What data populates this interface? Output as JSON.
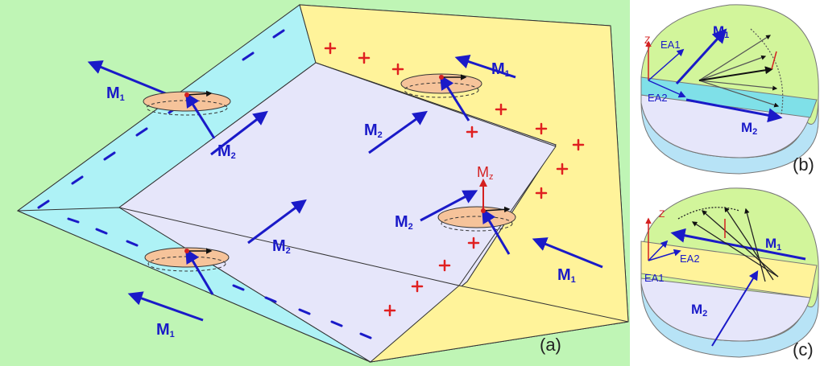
{
  "panels": {
    "a": {
      "label": "(a)"
    },
    "b": {
      "label": "(b)"
    },
    "c": {
      "label": "(c)"
    }
  },
  "labels": {
    "m1": "M",
    "m1_sub": "1",
    "m2": "M",
    "m2_sub": "2",
    "mz": "M",
    "mz_sub": "z",
    "z": "Z",
    "ea1": "EA1",
    "ea2": "EA2"
  },
  "colors": {
    "background": "#bff5b5",
    "left_band": "#aef2f6",
    "right_band": "#fff39a",
    "center": "#e6e6fa",
    "arrow": "#1a1ac8",
    "red_marks": "#e02020",
    "cone": "#f6c39a"
  },
  "marks": {
    "plus": "+",
    "dash": "—"
  }
}
